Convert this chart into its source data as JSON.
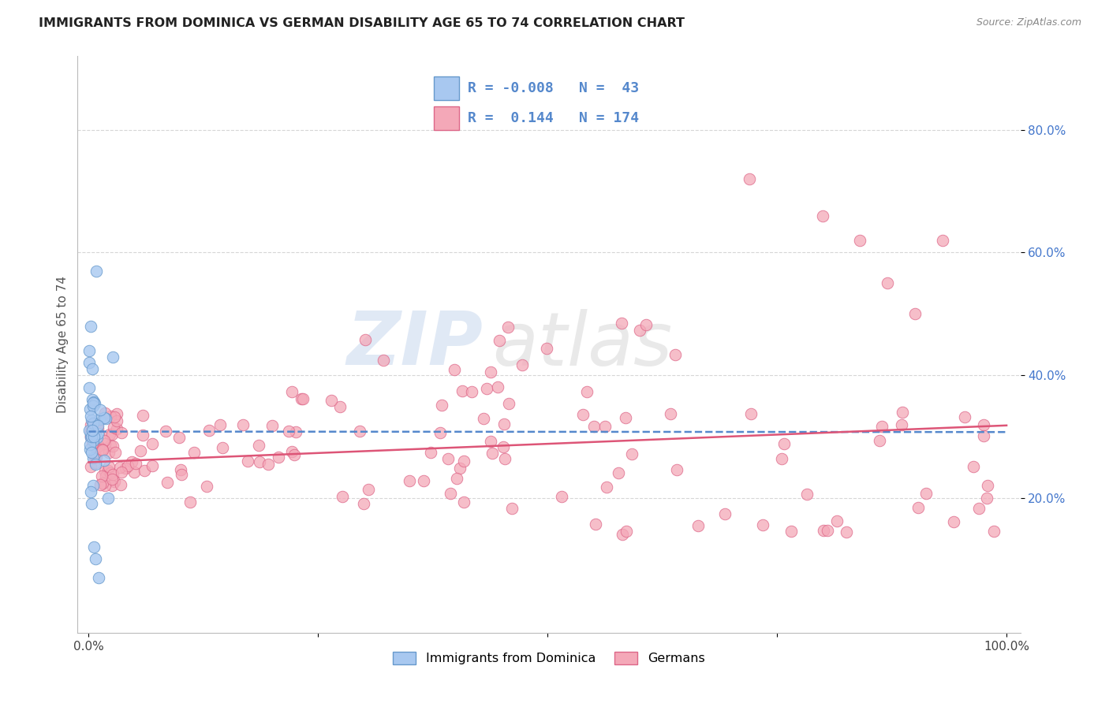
{
  "title": "IMMIGRANTS FROM DOMINICA VS GERMAN DISABILITY AGE 65 TO 74 CORRELATION CHART",
  "source": "Source: ZipAtlas.com",
  "ylabel": "Disability Age 65 to 74",
  "watermark_zip": "ZIP",
  "watermark_atlas": "atlas",
  "legend_blue_r": "-0.008",
  "legend_blue_n": "43",
  "legend_pink_r": "0.144",
  "legend_pink_n": "174",
  "legend_blue_label": "Immigrants from Dominica",
  "legend_pink_label": "Germans",
  "blue_color": "#a8c8f0",
  "pink_color": "#f4a8b8",
  "blue_edge_color": "#6699cc",
  "pink_edge_color": "#dd6688",
  "blue_line_color": "#5588cc",
  "pink_line_color": "#dd5577",
  "ytick_color": "#4477cc",
  "background_color": "#ffffff",
  "grid_color": "#cccccc",
  "ylabel_color": "#555555",
  "title_color": "#222222",
  "source_color": "#888888",
  "watermark_zip_color": "#c8d8ee",
  "watermark_atlas_color": "#d8d8d8",
  "blue_intercept": 0.308,
  "blue_slope": -0.008,
  "pink_intercept": 0.258,
  "pink_slope": 0.06
}
